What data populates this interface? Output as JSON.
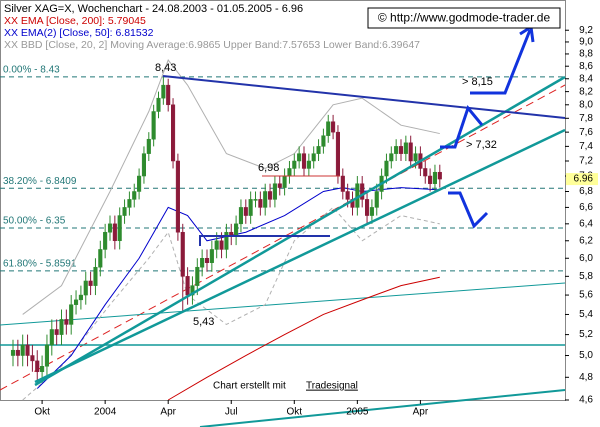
{
  "chart_data": {
    "type": "candlestick",
    "title": "Silver XAG=X, Wochenchart - 24.08.2003 - 01.05.2005 - 6.96",
    "copyright": "© http://www.godmode-trader.de",
    "footer": "Chart erstellt mit",
    "footer_link": "Tradesignal",
    "log_scale": true,
    "ylim": [
      4.6,
      9.7
    ],
    "yticks": [
      {
        "value": 9.2,
        "label": "9,2"
      },
      {
        "value": 9.0,
        "label": "9,0"
      },
      {
        "value": 8.8,
        "label": "8,8"
      },
      {
        "value": 8.6,
        "label": "8,6"
      },
      {
        "value": 8.4,
        "label": "8,4"
      },
      {
        "value": 8.2,
        "label": "8,2"
      },
      {
        "value": 8.0,
        "label": "8,0"
      },
      {
        "value": 7.8,
        "label": "7,8"
      },
      {
        "value": 7.6,
        "label": "7,6"
      },
      {
        "value": 7.4,
        "label": "7,4"
      },
      {
        "value": 7.2,
        "label": "7,2"
      },
      {
        "value": 7.0,
        "label": "7,0"
      },
      {
        "value": 6.8,
        "label": "6,8"
      },
      {
        "value": 6.6,
        "label": "6,6"
      },
      {
        "value": 6.4,
        "label": "6,4"
      },
      {
        "value": 6.2,
        "label": "6,2"
      },
      {
        "value": 6.0,
        "label": "6,0"
      },
      {
        "value": 5.8,
        "label": "5,8"
      },
      {
        "value": 5.6,
        "label": "5,6"
      },
      {
        "value": 5.4,
        "label": "5,4"
      },
      {
        "value": 5.2,
        "label": "5,2"
      },
      {
        "value": 5.0,
        "label": "5,0"
      },
      {
        "value": 4.8,
        "label": "4,8"
      },
      {
        "value": 4.6,
        "label": "4,6"
      }
    ],
    "last_price": 6.96,
    "up_color": "#2e8b2e",
    "down_color": "#8b1a3a",
    "categories": [
      null,
      null,
      null,
      null,
      null,
      null,
      "Okt",
      null,
      null,
      null,
      null,
      null,
      null,
      null,
      null,
      null,
      null,
      null,
      null,
      "2004",
      null,
      null,
      null,
      null,
      null,
      null,
      null,
      null,
      null,
      null,
      null,
      null,
      "Apr",
      null,
      null,
      null,
      null,
      null,
      null,
      null,
      null,
      null,
      null,
      null,
      null,
      "Jul",
      null,
      null,
      null,
      null,
      null,
      null,
      null,
      null,
      null,
      null,
      null,
      null,
      "Okt",
      null,
      null,
      null,
      null,
      null,
      null,
      null,
      null,
      null,
      null,
      null,
      null,
      "2005",
      null,
      null,
      null,
      null,
      null,
      null,
      null,
      null,
      null,
      null,
      null,
      null,
      "Apr",
      null,
      null,
      null,
      null
    ],
    "open": [
      5.0,
      5.05,
      5.0,
      5.1,
      5.0,
      4.95,
      4.85,
      4.9,
      5.1,
      5.25,
      5.2,
      5.35,
      5.3,
      5.5,
      5.55,
      5.6,
      5.75,
      5.7,
      5.9,
      6.1,
      6.3,
      6.4,
      6.2,
      6.5,
      6.6,
      6.7,
      6.8,
      7.0,
      7.3,
      7.5,
      7.9,
      8.1,
      8.3,
      8.0,
      7.2,
      6.3,
      5.8,
      5.6,
      5.7,
      5.9,
      6.0,
      5.95,
      6.1,
      6.2,
      6.1,
      6.3,
      6.25,
      6.4,
      6.6,
      6.5,
      6.7,
      6.7,
      6.6,
      6.8,
      6.7,
      6.9,
      6.85,
      7.0,
      7.1,
      7.2,
      7.3,
      7.1,
      7.2,
      7.3,
      7.4,
      7.55,
      7.75,
      7.6,
      7.0,
      6.8,
      6.7,
      6.6,
      6.9,
      6.7,
      6.5,
      6.6,
      6.8,
      7.0,
      7.2,
      7.3,
      7.4,
      7.3,
      7.45,
      7.2,
      7.3,
      7.1,
      7.0,
      6.9,
      7.05
    ],
    "high": [
      5.15,
      5.15,
      5.2,
      5.2,
      5.1,
      5.05,
      5.0,
      5.2,
      5.35,
      5.35,
      5.45,
      5.45,
      5.6,
      5.65,
      5.7,
      5.85,
      5.85,
      6.0,
      6.2,
      6.4,
      6.5,
      6.5,
      6.6,
      6.7,
      6.8,
      6.9,
      7.1,
      7.4,
      7.6,
      8.0,
      8.2,
      8.43,
      8.4,
      8.1,
      7.3,
      6.4,
      5.9,
      5.8,
      6.0,
      6.1,
      6.1,
      6.2,
      6.3,
      6.3,
      6.4,
      6.4,
      6.5,
      6.7,
      6.7,
      6.8,
      6.8,
      6.8,
      6.9,
      6.9,
      7.0,
      7.0,
      7.1,
      7.2,
      7.3,
      7.4,
      7.4,
      7.3,
      7.4,
      7.5,
      7.65,
      7.85,
      7.85,
      7.7,
      7.1,
      6.9,
      6.8,
      7.0,
      7.0,
      6.8,
      6.7,
      6.9,
      7.1,
      7.3,
      7.4,
      7.5,
      7.5,
      7.55,
      7.55,
      7.4,
      7.4,
      7.2,
      7.1,
      7.15,
      7.15
    ],
    "low": [
      4.9,
      4.9,
      4.9,
      4.9,
      4.85,
      4.75,
      4.75,
      4.8,
      5.0,
      5.1,
      5.1,
      5.2,
      5.2,
      5.4,
      5.45,
      5.5,
      5.6,
      5.6,
      5.8,
      6.0,
      6.2,
      6.1,
      6.1,
      6.4,
      6.5,
      6.6,
      6.7,
      6.9,
      7.2,
      7.4,
      7.8,
      8.0,
      7.9,
      7.1,
      6.2,
      5.43,
      5.5,
      5.5,
      5.6,
      5.8,
      5.85,
      5.85,
      6.0,
      6.0,
      6.0,
      6.15,
      6.15,
      6.3,
      6.4,
      6.4,
      6.6,
      6.5,
      6.5,
      6.6,
      6.6,
      6.75,
      6.75,
      6.9,
      7.0,
      7.1,
      7.0,
      7.0,
      7.1,
      7.2,
      7.3,
      7.45,
      7.5,
      6.9,
      6.7,
      6.6,
      6.5,
      6.5,
      6.6,
      6.4,
      6.4,
      6.5,
      6.7,
      6.9,
      7.1,
      7.2,
      7.2,
      7.2,
      7.1,
      7.1,
      7.0,
      6.9,
      6.8,
      6.8,
      6.85
    ],
    "close": [
      5.05,
      5.0,
      5.1,
      5.0,
      4.95,
      4.85,
      4.9,
      5.1,
      5.25,
      5.2,
      5.35,
      5.3,
      5.5,
      5.55,
      5.6,
      5.75,
      5.7,
      5.9,
      6.1,
      6.3,
      6.4,
      6.2,
      6.5,
      6.6,
      6.7,
      6.8,
      7.0,
      7.3,
      7.5,
      7.9,
      8.1,
      8.3,
      8.0,
      7.2,
      6.3,
      5.8,
      5.6,
      5.7,
      5.9,
      6.0,
      5.95,
      6.1,
      6.2,
      6.1,
      6.3,
      6.25,
      6.4,
      6.6,
      6.5,
      6.7,
      6.7,
      6.6,
      6.8,
      6.7,
      6.9,
      6.85,
      7.0,
      7.1,
      7.2,
      7.3,
      7.1,
      7.2,
      7.3,
      7.4,
      7.55,
      7.75,
      7.6,
      7.0,
      6.8,
      6.7,
      6.6,
      6.9,
      6.7,
      6.5,
      6.6,
      6.8,
      7.0,
      7.2,
      7.3,
      7.4,
      7.3,
      7.45,
      7.2,
      7.3,
      7.1,
      7.0,
      6.9,
      7.05,
      6.96
    ],
    "indicators": [
      {
        "name": "XX EMA [Close, 200]: 5.79045",
        "color": "#cc0000",
        "x": [
          32,
          40,
          48,
          56,
          64,
          72,
          80,
          88
        ],
        "values": [
          4.6,
          4.8,
          5.0,
          5.2,
          5.4,
          5.55,
          5.7,
          5.79
        ]
      },
      {
        "name": "XX EMA(2) [Close, 50]: 6.81532",
        "color": "#0000cc",
        "x": [
          5,
          12,
          19,
          26,
          32,
          36,
          40,
          48,
          56,
          64,
          68,
          72,
          80,
          88
        ],
        "values": [
          4.7,
          5.0,
          5.5,
          6.0,
          6.6,
          6.5,
          6.2,
          6.3,
          6.5,
          6.8,
          6.85,
          6.8,
          6.85,
          6.82
        ]
      }
    ],
    "bands": {
      "name": "XX BBD [Close, 20, 2] Moving Average:6.9865 Upper Band:7.57653 Lower Band:6.39647",
      "color": "#b0b0b0",
      "x": [
        2,
        10,
        20,
        28,
        32,
        36,
        44,
        52,
        58,
        66,
        72,
        80,
        88
      ],
      "upper": [
        5.4,
        5.7,
        6.8,
        7.9,
        8.7,
        8.3,
        7.3,
        7.1,
        7.3,
        8.0,
        8.1,
        7.7,
        7.58
      ],
      "lower": [
        4.6,
        4.9,
        5.5,
        6.0,
        6.3,
        5.6,
        5.3,
        5.5,
        6.2,
        6.6,
        6.2,
        6.5,
        6.4
      ]
    },
    "fib_levels": [
      {
        "label": "0.00% - 8.43",
        "value": 8.43
      },
      {
        "label": "38.20% - 6.8409",
        "value": 6.8409
      },
      {
        "label": "50.00% - 6.35",
        "value": 6.35
      },
      {
        "label": "61.80% - 5.8591",
        "value": 5.8591
      }
    ],
    "annotations": [
      "8,43",
      "5,43",
      "6,98",
      "> 8,15",
      "> 7,32"
    ]
  }
}
